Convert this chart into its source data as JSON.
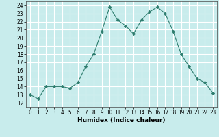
{
  "x": [
    0,
    1,
    2,
    3,
    4,
    5,
    6,
    7,
    8,
    9,
    10,
    11,
    12,
    13,
    14,
    15,
    16,
    17,
    18,
    19,
    20,
    21,
    22,
    23
  ],
  "y": [
    13.0,
    12.5,
    14.0,
    14.0,
    14.0,
    13.8,
    14.5,
    16.5,
    18.0,
    20.8,
    23.8,
    22.2,
    21.5,
    20.5,
    22.2,
    23.2,
    23.8,
    23.0,
    20.8,
    18.0,
    16.5,
    15.0,
    14.5,
    13.2
  ],
  "line_color": "#2e7d6e",
  "marker": "D",
  "marker_size": 2.2,
  "bg_color": "#c8ecec",
  "grid_color": "#ffffff",
  "xlabel": "Humidex (Indice chaleur)",
  "ylabel_ticks": [
    12,
    13,
    14,
    15,
    16,
    17,
    18,
    19,
    20,
    21,
    22,
    23,
    24
  ],
  "xlim": [
    -0.5,
    23.5
  ],
  "ylim": [
    11.5,
    24.5
  ],
  "label_fontsize": 6.5,
  "tick_fontsize": 5.5
}
